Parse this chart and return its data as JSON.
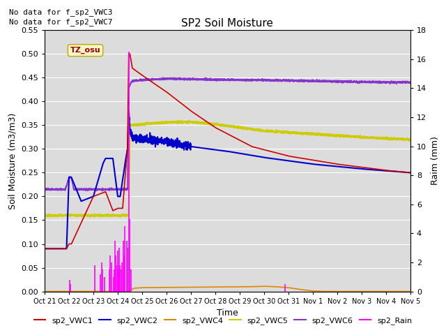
{
  "title": "SP2 Soil Moisture",
  "xlabel": "Time",
  "ylabel_left": "Soil Moisture (m3/m3)",
  "ylabel_right": "Raim (mm)",
  "ylim_left": [
    0,
    0.55
  ],
  "ylim_right": [
    0,
    18
  ],
  "yticks_left": [
    0.0,
    0.05,
    0.1,
    0.15,
    0.2,
    0.25,
    0.3,
    0.35,
    0.4,
    0.45,
    0.5,
    0.55
  ],
  "yticks_right": [
    0,
    2,
    4,
    6,
    8,
    10,
    12,
    14,
    16,
    18
  ],
  "bg_color": "#dcdcdc",
  "no_data_text": [
    "No data for f_sp2_VWC3",
    "No data for f_sp2_VWC7"
  ],
  "tz_label": "TZ_osu",
  "x_tick_labels": [
    "Oct 21",
    "Oct 22",
    "Oct 23",
    "Oct 24",
    "Oct 25",
    "Oct 26",
    "Oct 27",
    "Oct 28",
    "Oct 29",
    "Oct 30",
    "Oct 31",
    "Nov 1",
    "Nov 2",
    "Nov 3",
    "Nov 4",
    "Nov 5"
  ],
  "colors": {
    "VWC1": "#cc0000",
    "VWC2": "#0000cc",
    "VWC4": "#dd8800",
    "VWC5": "#cccc00",
    "VWC6": "#8833cc",
    "Rain": "#ff00ff"
  }
}
